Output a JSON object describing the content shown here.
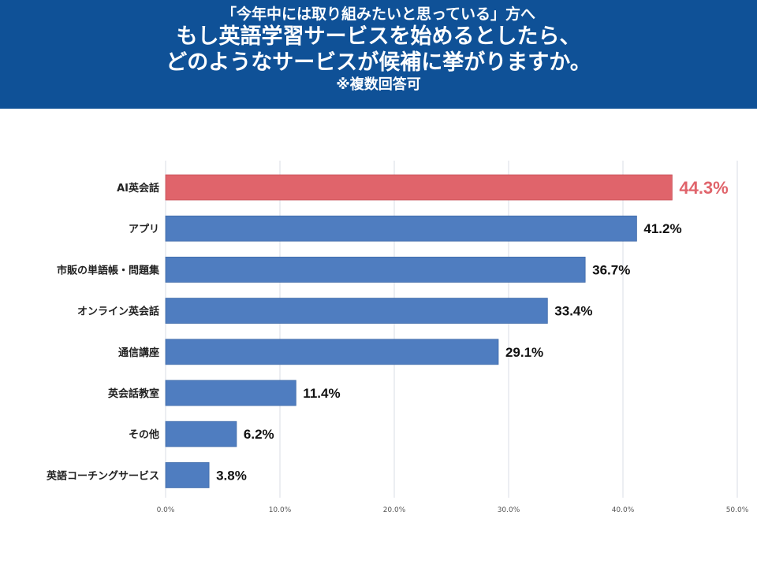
{
  "header": {
    "subtitle": "「今年中には取り組みたいと思っている」方へ",
    "title_line1": "もし英語学習サービスを始めるとしたら、",
    "title_line2": "どのようなサービスが候補に挙がりますか。",
    "note": "※複数回答可"
  },
  "colors": {
    "header_bg": "#0f5197",
    "bar_default": "#4f7dc0",
    "bar_highlight": "#e0646b",
    "label_highlight": "#e0646b",
    "label_default": "#111111",
    "grid": "#d8dde6"
  },
  "chart_data": {
    "type": "bar",
    "orientation": "horizontal",
    "categories": [
      "AI英会話",
      "アプリ",
      "市販の単語帳・問題集",
      "オンライン英会話",
      "通信講座",
      "英会話教室",
      "その他",
      "英語コーチングサービス"
    ],
    "values": [
      44.3,
      41.2,
      36.7,
      33.4,
      29.1,
      11.4,
      6.2,
      3.8
    ],
    "value_labels": [
      "44.3%",
      "41.2%",
      "36.7%",
      "33.4%",
      "29.1%",
      "11.4%",
      "6.2%",
      "3.8%"
    ],
    "highlight_index": 0,
    "xlim": [
      0,
      50
    ],
    "x_ticks": [
      "0.0%",
      "10.0%",
      "20.0%",
      "30.0%",
      "40.0%",
      "50.0%"
    ],
    "grid": true,
    "title": "",
    "xlabel": "",
    "ylabel": ""
  }
}
